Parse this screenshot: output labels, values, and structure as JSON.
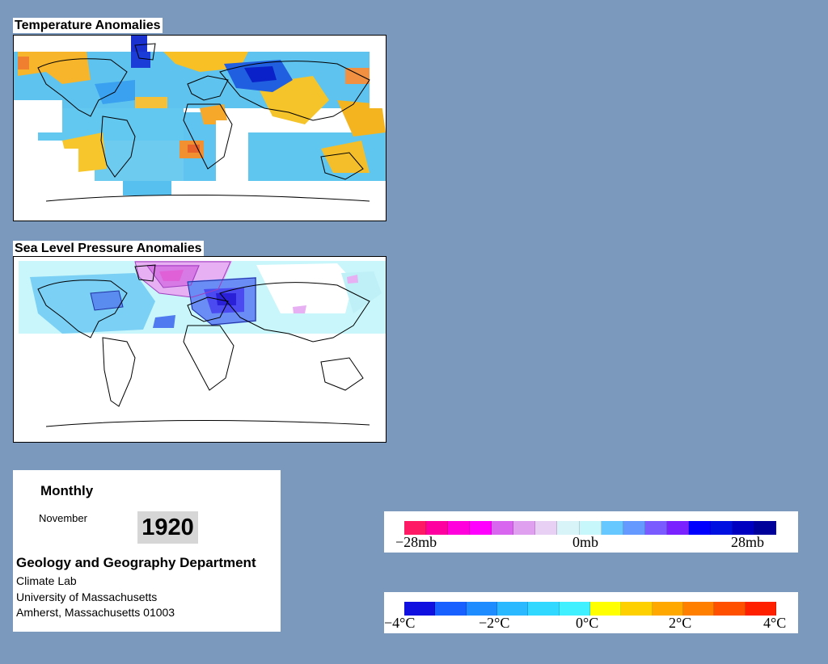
{
  "temperature_panel": {
    "title": "Temperature Anomalies"
  },
  "pressure_panel": {
    "title": "Sea Level Pressure Anomalies"
  },
  "info": {
    "frequency": "Monthly",
    "month": "November",
    "year": "1920",
    "department": "Geology and Geography Department",
    "lab": "Climate Lab",
    "university": "University of Massachusetts",
    "address": "Amherst, Massachusetts 01003"
  },
  "pressure_legend": {
    "labels": [
      "−28mb",
      "0mb",
      "28mb"
    ],
    "colors": [
      "#ff1a66",
      "#ff00a0",
      "#ff00dd",
      "#ff00ff",
      "#d966ee",
      "#e0a0f0",
      "#e8d0f5",
      "#d8f4f8",
      "#c8f7fb",
      "#66c8ff",
      "#6699ff",
      "#7a5bff",
      "#7a22ff",
      "#0000ff",
      "#0010e0",
      "#0000c0",
      "#00009a"
    ]
  },
  "temperature_legend": {
    "labels": [
      "−4°C",
      "−2°C",
      "0°C",
      "2°C",
      "4°C"
    ],
    "colors": [
      "#1010e0",
      "#1860ff",
      "#1e8cff",
      "#2ab8ff",
      "#30d8ff",
      "#40f0ff",
      "#ffff00",
      "#ffd000",
      "#ffa800",
      "#ff8000",
      "#ff5000",
      "#ff2000"
    ]
  }
}
